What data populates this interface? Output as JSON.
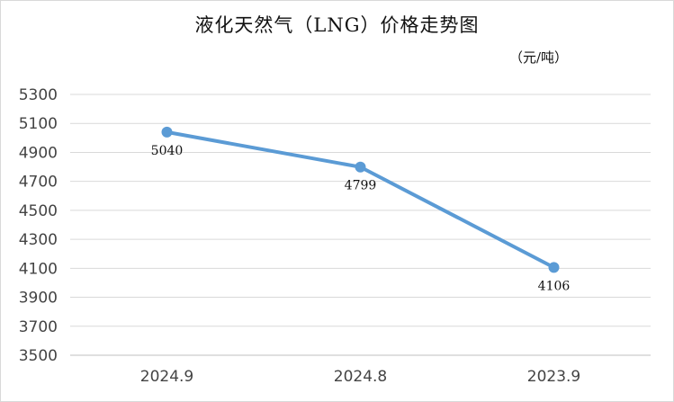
{
  "chart_data": {
    "type": "line",
    "title": "液化天然气（LNG）价格走势图",
    "unit_label": "（元/吨）",
    "categories": [
      "2024.9",
      "2024.8",
      "2023.9"
    ],
    "series": [
      {
        "values": [
          5040,
          4799,
          4106
        ]
      }
    ],
    "data_labels": [
      "5040",
      "4799",
      "4106"
    ],
    "ylim": [
      3500,
      5300
    ],
    "yticks": [
      5300,
      5100,
      4900,
      4700,
      4500,
      4300,
      4100,
      3900,
      3700,
      3500
    ],
    "grid": true,
    "legend": "none",
    "line_color": "#5b9bd5"
  }
}
